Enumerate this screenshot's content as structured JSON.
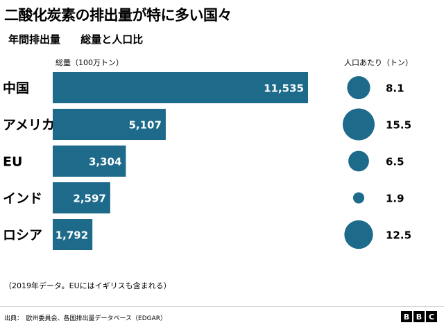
{
  "title": "二酸化炭素の排出量が特に多い国々",
  "subtitle": [
    "年間排出量",
    "総量と人口比"
  ],
  "note": "（2019年データ。EUにはイギリスも含まれる）",
  "source": "出典：　欧州委員会、各国排出量データベース（EDGAR）",
  "logo": [
    "B",
    "B",
    "C"
  ],
  "colors": {
    "bar": "#1d6a8b",
    "value_text": "#ffffff",
    "rule": "#cfcfcf"
  },
  "chart_data": [
    {
      "type": "bar",
      "orientation": "horizontal",
      "ylabel": "総量（100万トン）",
      "categories": [
        "中国",
        "アメリカ",
        "EU",
        "インド",
        "ロシア"
      ],
      "values": [
        11535,
        5107,
        3304,
        2597,
        1792
      ],
      "value_labels": [
        "11,535",
        "5,107",
        "3,304",
        "2,597",
        "1,792"
      ],
      "grid": false
    },
    {
      "type": "scatter",
      "encoding": "bubble-size",
      "ylabel": "人口あたり（トン）",
      "categories": [
        "中国",
        "アメリカ",
        "EU",
        "インド",
        "ロシア"
      ],
      "values": [
        8.1,
        15.5,
        6.5,
        1.9,
        12.5
      ],
      "value_labels": [
        "8.1",
        "15.5",
        "6.5",
        "1.9",
        "12.5"
      ]
    }
  ]
}
